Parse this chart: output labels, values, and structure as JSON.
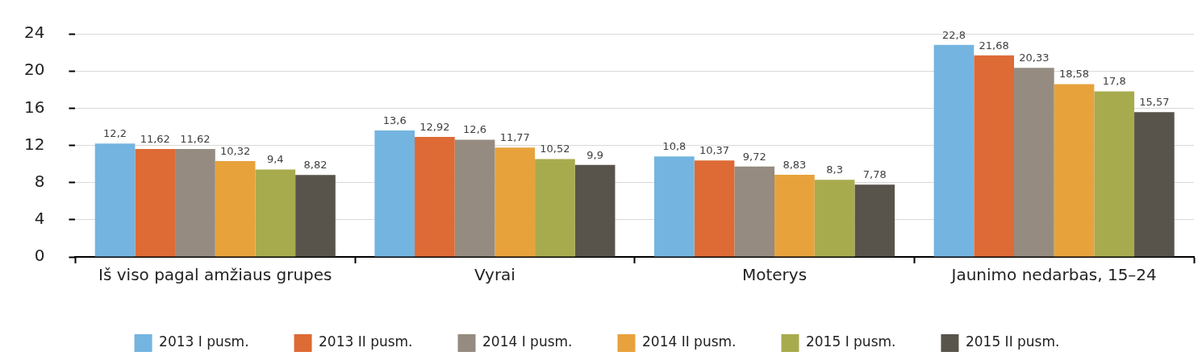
{
  "chart_data": {
    "type": "bar",
    "categories": [
      "Iš viso pagal amžiaus grupes",
      "Vyrai",
      "Moterys",
      "Jaunimo nedarbas, 15–24"
    ],
    "series": [
      {
        "name": "2013 I pusm.",
        "color": "#74b4e0",
        "values": [
          12.2,
          13.6,
          10.8,
          22.8
        ],
        "value_labels": [
          "12,2",
          "13,6",
          "10,8",
          "22,8"
        ]
      },
      {
        "name": "2013 II pusm.",
        "color": "#de6a35",
        "values": [
          11.62,
          12.92,
          10.37,
          21.68
        ],
        "value_labels": [
          "11,62",
          "12,92",
          "10,37",
          "21,68"
        ]
      },
      {
        "name": "2014 I pusm.",
        "color": "#958b80",
        "values": [
          11.62,
          12.6,
          9.72,
          20.33
        ],
        "value_labels": [
          "11,62",
          "12,6",
          "9,72",
          "20,33"
        ]
      },
      {
        "name": "2014 II pusm.",
        "color": "#e8a23c",
        "values": [
          10.32,
          11.77,
          8.83,
          18.58
        ],
        "value_labels": [
          "10,32",
          "11,77",
          "8,83",
          "18,58"
        ]
      },
      {
        "name": "2015 I pusm.",
        "color": "#a8ab4d",
        "values": [
          9.4,
          10.52,
          8.3,
          17.8
        ],
        "value_labels": [
          "9,4",
          "10,52",
          "8,3",
          "17,8"
        ]
      },
      {
        "name": "2015 II pusm.",
        "color": "#58544b",
        "values": [
          8.82,
          9.9,
          7.78,
          15.57
        ],
        "value_labels": [
          "8,82",
          "9,9",
          "7,78",
          "15,57"
        ]
      }
    ],
    "ylim": [
      0,
      24
    ],
    "yticks": [
      0,
      4,
      8,
      12,
      16,
      20,
      24
    ],
    "grid": "y",
    "legend": "bottom"
  }
}
